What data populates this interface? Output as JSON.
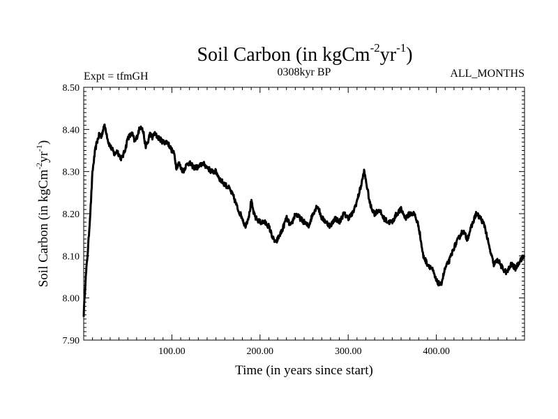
{
  "chart_data": {
    "type": "line",
    "title": {
      "main": "Soil Carbon (in kgCm",
      "sup1": "-2",
      "mid": "yr",
      "sup2": "-1",
      "end": ")"
    },
    "subtitle_left": "Expt = tfmGH",
    "subtitle_center": "0308kyr BP",
    "subtitle_right": "ALL_MONTHS",
    "xlabel": "Time (in years since start)",
    "ylabel": {
      "main": "Soil Carbon (in kgCm",
      "sup1": "-2",
      "mid": "yr",
      "sup2": "-1",
      "end": ")"
    },
    "xlim": [
      0,
      500
    ],
    "ylim": [
      7.9,
      8.5
    ],
    "xticks": [
      {
        "value": 100,
        "label": "100.00"
      },
      {
        "value": 200,
        "label": "200.00"
      },
      {
        "value": 300,
        "label": "300.00"
      },
      {
        "value": 400,
        "label": "400.00"
      }
    ],
    "yticks": [
      {
        "value": 7.9,
        "label": "7.90"
      },
      {
        "value": 8.0,
        "label": "8.00"
      },
      {
        "value": 8.1,
        "label": "8.10"
      },
      {
        "value": 8.2,
        "label": "8.20"
      },
      {
        "value": 8.3,
        "label": "8.30"
      },
      {
        "value": 8.4,
        "label": "8.40"
      },
      {
        "value": 8.5,
        "label": "8.50"
      }
    ],
    "series": [
      {
        "name": "Soil Carbon",
        "color": "#000000",
        "x": [
          0,
          2,
          5,
          8,
          10,
          13,
          15,
          18,
          20,
          23,
          25,
          28,
          30,
          33,
          35,
          38,
          40,
          43,
          45,
          48,
          50,
          55,
          58,
          60,
          63,
          65,
          68,
          70,
          73,
          75,
          78,
          80,
          85,
          90,
          95,
          100,
          103,
          105,
          108,
          110,
          113,
          115,
          118,
          120,
          125,
          130,
          135,
          140,
          145,
          150,
          155,
          160,
          165,
          170,
          175,
          180,
          183,
          185,
          188,
          190,
          193,
          195,
          200,
          205,
          210,
          215,
          218,
          220,
          225,
          230,
          235,
          240,
          245,
          250,
          255,
          260,
          265,
          270,
          275,
          280,
          285,
          290,
          295,
          300,
          305,
          310,
          315,
          318,
          320,
          325,
          330,
          335,
          340,
          345,
          350,
          355,
          360,
          365,
          370,
          375,
          380,
          385,
          390,
          395,
          400,
          405,
          410,
          415,
          420,
          425,
          430,
          435,
          440,
          445,
          450,
          455,
          460,
          465,
          470,
          475,
          480,
          485,
          490,
          495,
          500
        ],
        "values": [
          7.96,
          8.04,
          8.12,
          8.22,
          8.3,
          8.35,
          8.37,
          8.39,
          8.38,
          8.41,
          8.4,
          8.37,
          8.36,
          8.35,
          8.34,
          8.35,
          8.34,
          8.33,
          8.34,
          8.36,
          8.38,
          8.39,
          8.37,
          8.38,
          8.4,
          8.41,
          8.39,
          8.36,
          8.37,
          8.39,
          8.38,
          8.39,
          8.38,
          8.37,
          8.37,
          8.35,
          8.34,
          8.31,
          8.32,
          8.31,
          8.3,
          8.31,
          8.32,
          8.32,
          8.31,
          8.31,
          8.32,
          8.31,
          8.3,
          8.3,
          8.28,
          8.27,
          8.26,
          8.24,
          8.21,
          8.19,
          8.17,
          8.18,
          8.2,
          8.23,
          8.2,
          8.19,
          8.18,
          8.18,
          8.17,
          8.14,
          8.13,
          8.14,
          8.16,
          8.19,
          8.17,
          8.2,
          8.19,
          8.18,
          8.17,
          8.2,
          8.22,
          8.19,
          8.18,
          8.17,
          8.19,
          8.18,
          8.2,
          8.19,
          8.2,
          8.23,
          8.27,
          8.3,
          8.28,
          8.22,
          8.2,
          8.21,
          8.19,
          8.18,
          8.18,
          8.2,
          8.21,
          8.19,
          8.2,
          8.2,
          8.17,
          8.1,
          8.08,
          8.07,
          8.04,
          8.03,
          8.07,
          8.09,
          8.12,
          8.14,
          8.16,
          8.14,
          8.17,
          8.2,
          8.19,
          8.17,
          8.12,
          8.08,
          8.09,
          8.07,
          8.06,
          8.08,
          8.07,
          8.09,
          8.1
        ]
      }
    ]
  }
}
